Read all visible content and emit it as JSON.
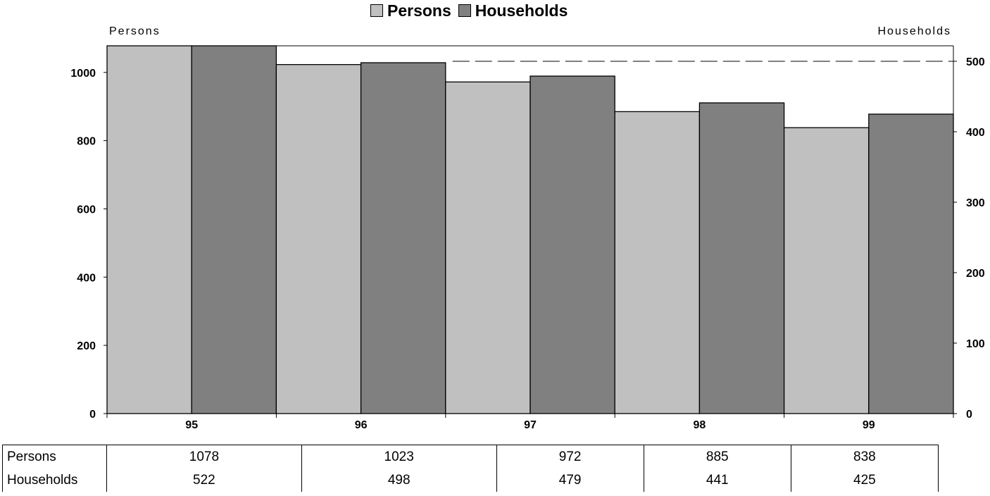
{
  "legend": {
    "persons_label": "Persons",
    "households_label": "Households"
  },
  "axis_titles": {
    "left": "Persons",
    "right": "Households"
  },
  "colors": {
    "persons": "#c0c0c0",
    "households": "#808080",
    "outline": "#000000",
    "reference_line": "#000000"
  },
  "chart_data": {
    "type": "bar",
    "categories": [
      "95",
      "96",
      "97",
      "98",
      "99"
    ],
    "series": [
      {
        "name": "Persons",
        "axis": "left",
        "values": [
          1078,
          1023,
          972,
          885,
          838
        ]
      },
      {
        "name": "Households",
        "axis": "right",
        "values": [
          522,
          498,
          479,
          441,
          425
        ]
      }
    ],
    "ylabel": "Persons",
    "y2label": "Households",
    "ylim": [
      0,
      1078
    ],
    "y2lim": [
      0,
      522
    ],
    "yticks": [
      0,
      200,
      400,
      600,
      800,
      1000
    ],
    "y2ticks": [
      0,
      100,
      200,
      300,
      400,
      500
    ],
    "reference_line": {
      "axis": "right",
      "value": 500,
      "style": "dashed"
    },
    "legend_position": "top-center",
    "grid": false
  },
  "table": {
    "rows": [
      {
        "label": "Persons",
        "values": [
          "1078",
          "1023",
          "972",
          "885",
          "838"
        ]
      },
      {
        "label": "Households",
        "values": [
          "522",
          "498",
          "479",
          "441",
          "425"
        ]
      }
    ]
  }
}
